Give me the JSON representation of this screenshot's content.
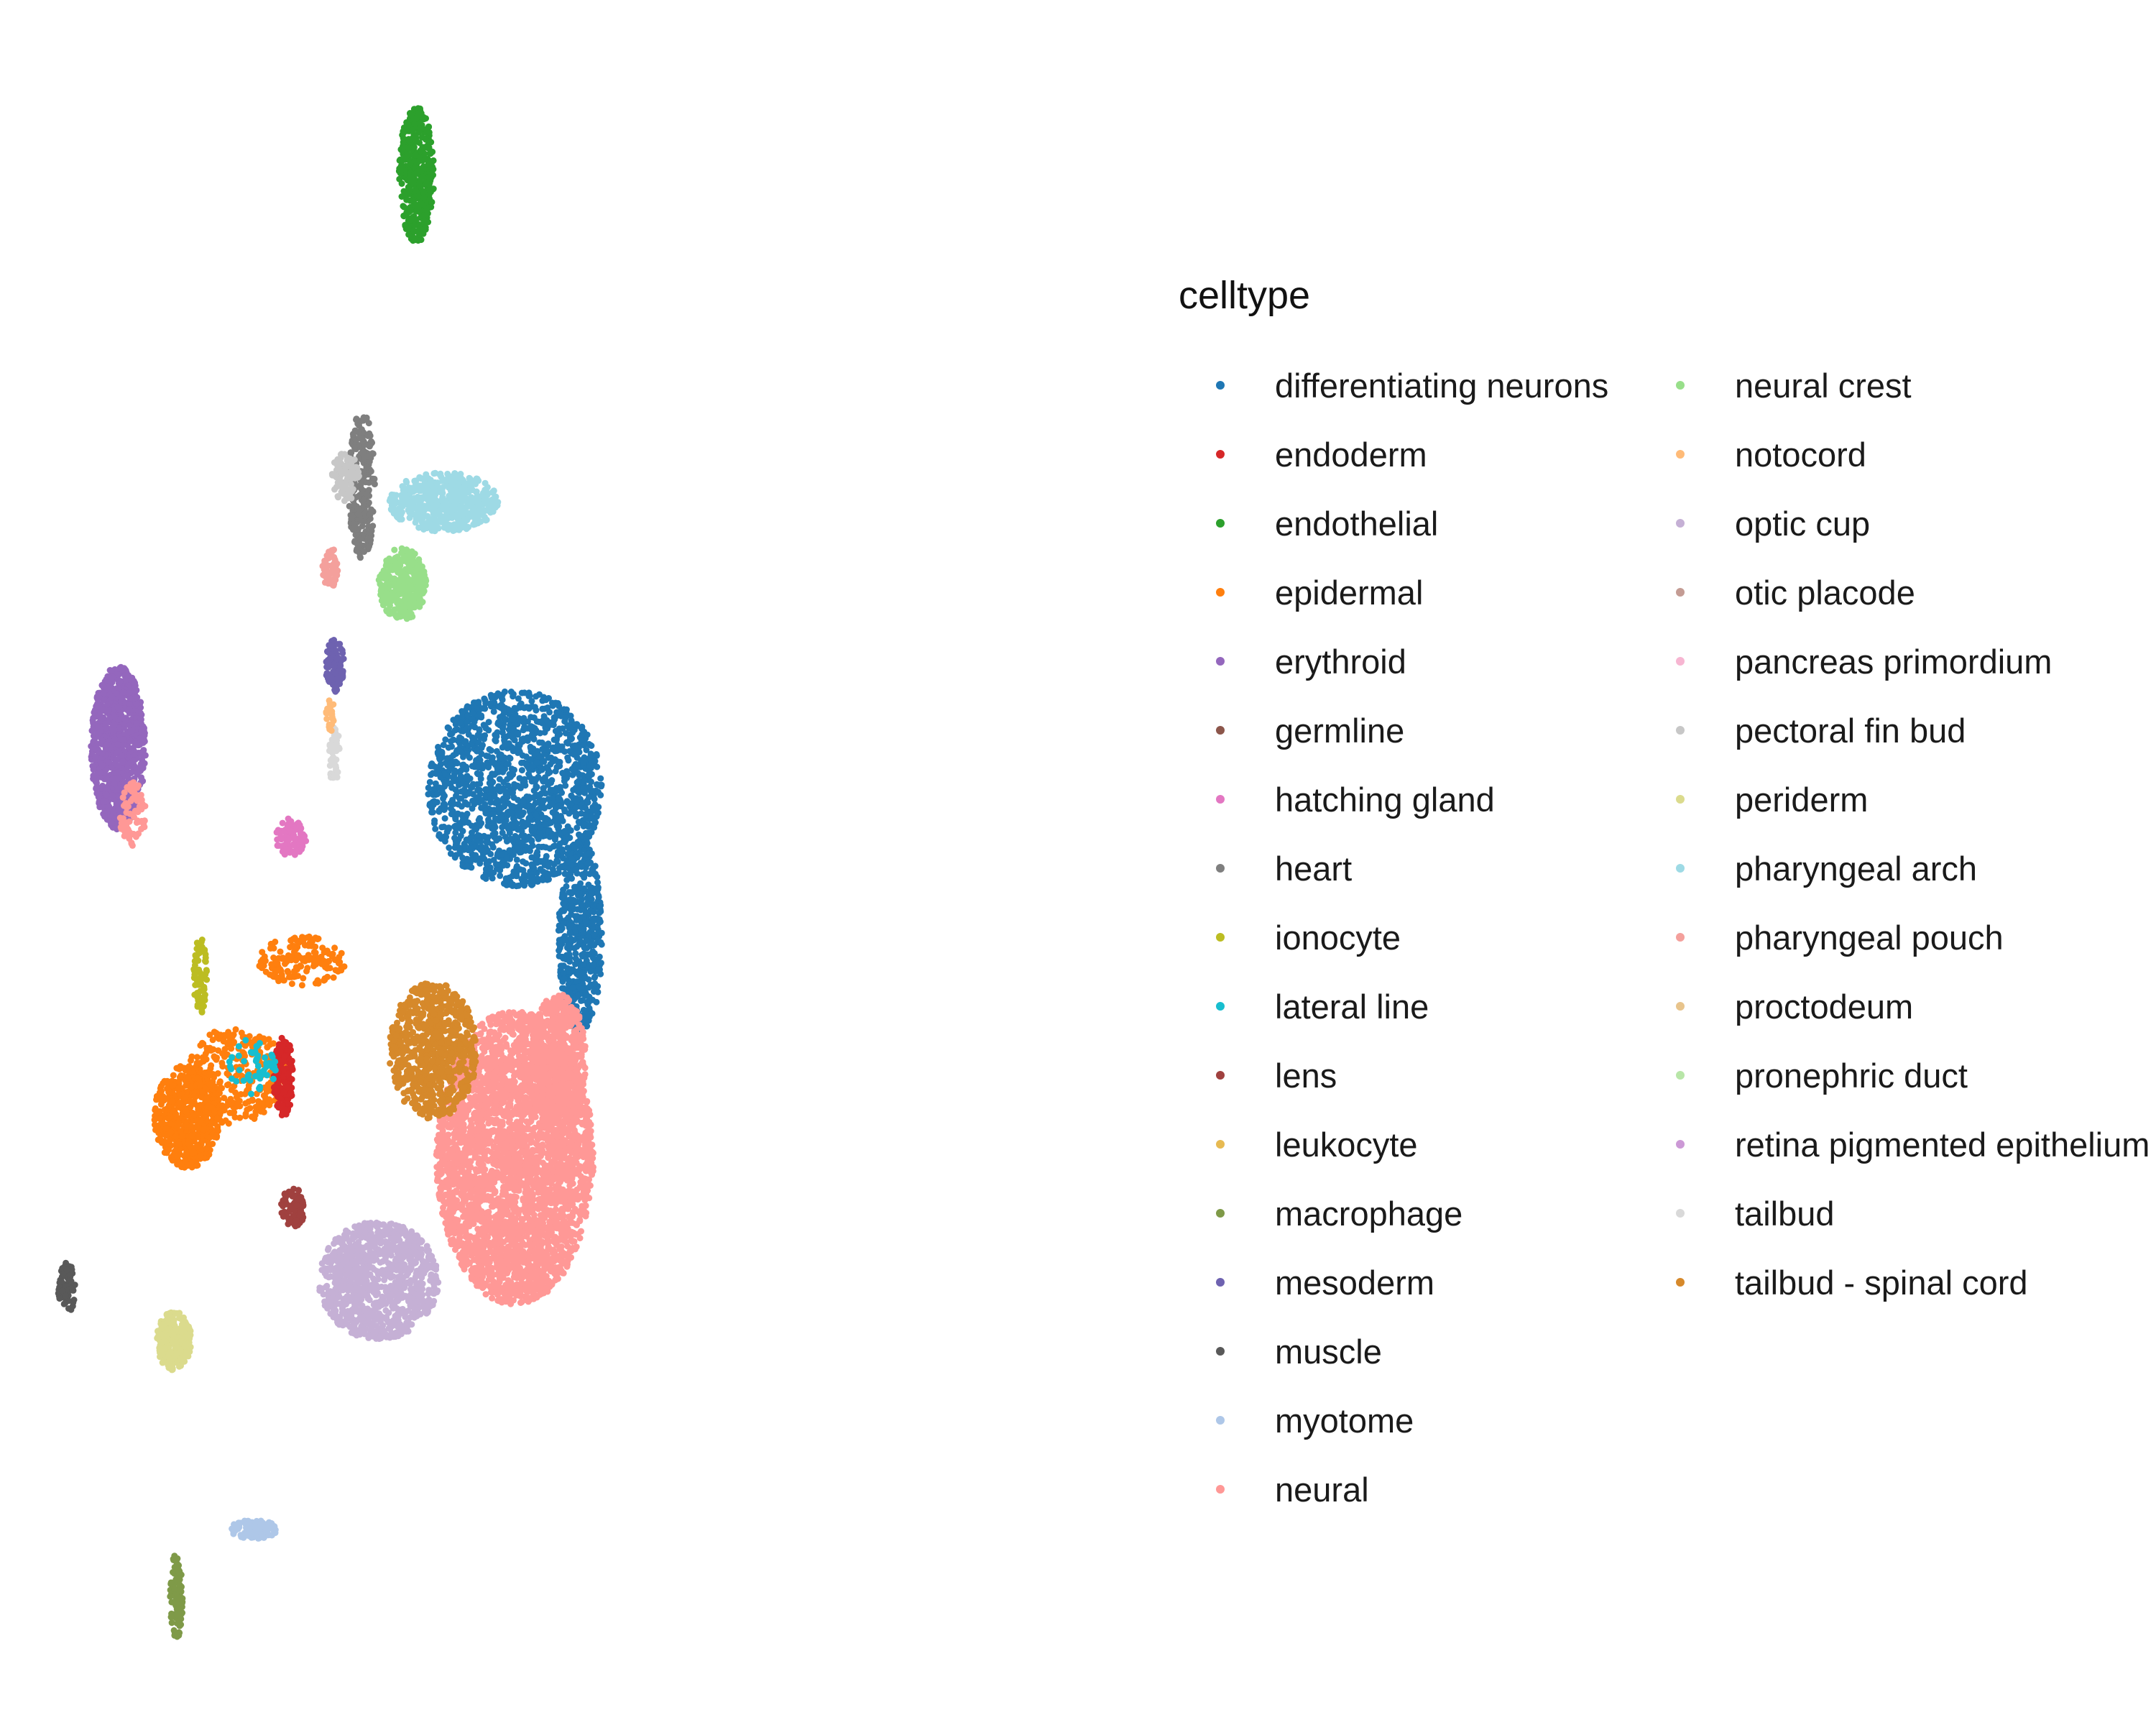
{
  "chart_data": {
    "type": "scatter",
    "title": "",
    "xlabel": "",
    "ylabel": "",
    "axes_visible": false,
    "grid": false,
    "legend_placement": "right",
    "legend_title": "celltype",
    "xlim": [
      0,
      100
    ],
    "ylim": [
      0,
      100
    ],
    "series": [
      {
        "name": "differentiating neurons",
        "color": "#1f77b4"
      },
      {
        "name": "endoderm",
        "color": "#d62728"
      },
      {
        "name": "endothelial",
        "color": "#2ca02c"
      },
      {
        "name": "epidermal",
        "color": "#ff7f0e"
      },
      {
        "name": "erythroid",
        "color": "#9467bd"
      },
      {
        "name": "germline",
        "color": "#8c564b"
      },
      {
        "name": "hatching gland",
        "color": "#e377c2"
      },
      {
        "name": "heart",
        "color": "#7f7f7f"
      },
      {
        "name": "ionocyte",
        "color": "#bcbd22"
      },
      {
        "name": "lateral line",
        "color": "#17becf"
      },
      {
        "name": "lens",
        "color": "#a0413f"
      },
      {
        "name": "leukocyte",
        "color": "#e7ba52"
      },
      {
        "name": "macrophage",
        "color": "#7f9a48"
      },
      {
        "name": "mesoderm",
        "color": "#6e62b0"
      },
      {
        "name": "muscle",
        "color": "#595959"
      },
      {
        "name": "myotome",
        "color": "#aec7e8"
      },
      {
        "name": "neural",
        "color": "#ff9896"
      },
      {
        "name": "neural crest",
        "color": "#98df8a"
      },
      {
        "name": "notocord",
        "color": "#ffbb78"
      },
      {
        "name": "optic cup",
        "color": "#c5b0d5"
      },
      {
        "name": "otic placode",
        "color": "#c49c94"
      },
      {
        "name": "pancreas primordium",
        "color": "#f7b6d2"
      },
      {
        "name": "pectoral fin bud",
        "color": "#c7c7c7"
      },
      {
        "name": "periderm",
        "color": "#dbdb8d"
      },
      {
        "name": "pharyngeal arch",
        "color": "#9edae5"
      },
      {
        "name": "pharyngeal pouch",
        "color": "#f4a09c"
      },
      {
        "name": "proctodeum",
        "color": "#e8c48c"
      },
      {
        "name": "pronephric duct",
        "color": "#b8e6a8"
      },
      {
        "name": "retina pigmented epithelium",
        "color": "#cc99d6"
      },
      {
        "name": "tailbud",
        "color": "#d9d9d9"
      },
      {
        "name": "tailbud - spinal cord",
        "color": "#d6892b"
      }
    ],
    "clusters": [
      {
        "series": "endothelial",
        "cx": 35.5,
        "cy": 92.0,
        "rx": 1.6,
        "ry": 4.2,
        "n": 420
      },
      {
        "series": "differentiating neurons",
        "cx": 44.5,
        "cy": 54.5,
        "rx": 8.0,
        "ry": 6.0,
        "n": 1500
      },
      {
        "series": "differentiating neurons",
        "cx": 50.5,
        "cy": 45.5,
        "rx": 2.0,
        "ry": 6.0,
        "n": 500
      },
      {
        "series": "neural",
        "cx": 44.5,
        "cy": 32.0,
        "rx": 7.2,
        "ry": 9.0,
        "n": 3400
      },
      {
        "series": "neural",
        "cx": 48.5,
        "cy": 38.0,
        "rx": 2.5,
        "ry": 4.0,
        "n": 600
      },
      {
        "series": "tailbud - spinal cord",
        "cx": 37.0,
        "cy": 38.5,
        "rx": 4.0,
        "ry": 4.2,
        "n": 750
      },
      {
        "series": "optic cup",
        "cx": 32.0,
        "cy": 24.5,
        "rx": 5.5,
        "ry": 3.6,
        "n": 1000
      },
      {
        "series": "erythroid",
        "cx": 8.2,
        "cy": 57.0,
        "rx": 2.5,
        "ry": 5.0,
        "n": 900
      },
      {
        "series": "pharyngeal arch",
        "cx": 38.0,
        "cy": 72.0,
        "rx": 5.0,
        "ry": 1.8,
        "n": 520
      },
      {
        "series": "neural crest",
        "cx": 34.2,
        "cy": 67.0,
        "rx": 2.2,
        "ry": 2.2,
        "n": 320
      },
      {
        "series": "heart",
        "cx": 30.5,
        "cy": 73.0,
        "rx": 1.2,
        "ry": 4.5,
        "n": 260
      },
      {
        "series": "pectoral fin bud",
        "cx": 29.0,
        "cy": 73.5,
        "rx": 1.3,
        "ry": 1.5,
        "n": 100
      },
      {
        "series": "mesoderm",
        "cx": 28.0,
        "cy": 62.0,
        "rx": 0.9,
        "ry": 1.6,
        "n": 110
      },
      {
        "series": "epidermal",
        "cx": 14.5,
        "cy": 34.5,
        "rx": 3.0,
        "ry": 3.2,
        "n": 600
      },
      {
        "series": "epidermal",
        "cx": 19.0,
        "cy": 37.0,
        "rx": 4.5,
        "ry": 3.0,
        "n": 300
      },
      {
        "series": "epidermal",
        "cx": 25.0,
        "cy": 44.0,
        "rx": 4.0,
        "ry": 1.5,
        "n": 160
      },
      {
        "series": "endoderm",
        "cx": 23.3,
        "cy": 37.0,
        "rx": 0.9,
        "ry": 2.5,
        "n": 140
      },
      {
        "series": "lens",
        "cx": 24.2,
        "cy": 29.0,
        "rx": 1.1,
        "ry": 1.3,
        "n": 90
      },
      {
        "series": "ionocyte",
        "cx": 15.7,
        "cy": 43.0,
        "rx": 0.6,
        "ry": 2.4,
        "n": 70
      },
      {
        "series": "lateral line",
        "cx": 20.5,
        "cy": 37.5,
        "rx": 2.2,
        "ry": 1.8,
        "n": 50
      },
      {
        "series": "periderm",
        "cx": 13.3,
        "cy": 20.8,
        "rx": 1.6,
        "ry": 1.8,
        "n": 240
      },
      {
        "series": "myotome",
        "cx": 20.5,
        "cy": 9.3,
        "rx": 2.2,
        "ry": 0.6,
        "n": 120
      },
      {
        "series": "macrophage",
        "cx": 13.5,
        "cy": 5.2,
        "rx": 0.6,
        "ry": 2.6,
        "n": 110
      },
      {
        "series": "muscle",
        "cx": 3.5,
        "cy": 24.0,
        "rx": 0.8,
        "ry": 1.6,
        "n": 70
      },
      {
        "series": "hatching gland",
        "cx": 24.0,
        "cy": 51.5,
        "rx": 1.4,
        "ry": 1.2,
        "n": 90
      },
      {
        "series": "pharyngeal pouch",
        "cx": 27.6,
        "cy": 68.0,
        "rx": 0.8,
        "ry": 1.2,
        "n": 60
      },
      {
        "series": "tailbud",
        "cx": 28.0,
        "cy": 56.5,
        "rx": 0.5,
        "ry": 1.8,
        "n": 50
      },
      {
        "series": "notocord",
        "cx": 27.6,
        "cy": 59.0,
        "rx": 0.4,
        "ry": 1.0,
        "n": 25
      },
      {
        "series": "neural",
        "cx": 9.5,
        "cy": 53.0,
        "rx": 1.2,
        "ry": 2.0,
        "n": 80
      }
    ]
  }
}
